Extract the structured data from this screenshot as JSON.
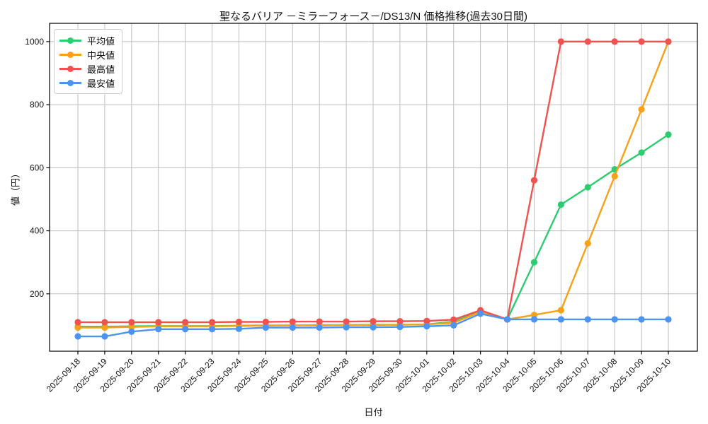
{
  "chart_data": {
    "type": "line",
    "title": "聖なるバリア －ミラーフォース－/DS13/N 価格推移(過去30日間)",
    "xlabel": "日付",
    "ylabel": "値（円）",
    "ylim": [
      18,
      1058
    ],
    "yticks": [
      200,
      400,
      600,
      800,
      1000
    ],
    "grid": true,
    "legend_position": "upper-left",
    "categories": [
      "2025-09-18",
      "2025-09-19",
      "2025-09-20",
      "2025-09-21",
      "2025-09-22",
      "2025-09-23",
      "2025-09-24",
      "2025-09-25",
      "2025-09-26",
      "2025-09-27",
      "2025-09-28",
      "2025-09-29",
      "2025-09-30",
      "2025-10-01",
      "2025-10-02",
      "2025-10-03",
      "2025-10-04",
      "2025-10-05",
      "2025-10-06",
      "2025-10-07",
      "2025-10-08",
      "2025-10-09",
      "2025-10-10"
    ],
    "series": [
      {
        "name": "平均値",
        "color": "#2ecc71",
        "values": [
          96,
          96,
          97,
          98,
          98,
          98,
          99,
          100,
          100,
          101,
          101,
          102,
          102,
          103,
          112,
          145,
          119,
          300,
          483,
          538,
          595,
          648,
          705
        ]
      },
      {
        "name": "中央値",
        "color": "#f7a118",
        "values": [
          93,
          93,
          95,
          97,
          97,
          97,
          98,
          99,
          100,
          100,
          101,
          101,
          102,
          103,
          108,
          143,
          119,
          133,
          148,
          360,
          573,
          785,
          1000
        ]
      },
      {
        "name": "最高値",
        "color": "#ef5350",
        "values": [
          110,
          110,
          110,
          110,
          110,
          110,
          111,
          111,
          112,
          112,
          112,
          113,
          113,
          114,
          118,
          148,
          119,
          560,
          1000,
          1000,
          1000,
          1000,
          1000
        ]
      },
      {
        "name": "最安値",
        "color": "#4d94f0",
        "values": [
          65,
          65,
          80,
          88,
          88,
          88,
          89,
          93,
          93,
          93,
          94,
          94,
          95,
          97,
          100,
          137,
          119,
          119,
          119,
          119,
          119,
          119,
          119
        ]
      }
    ],
    "grid_color": "#bdbdbd",
    "spine_color": "#000000"
  }
}
